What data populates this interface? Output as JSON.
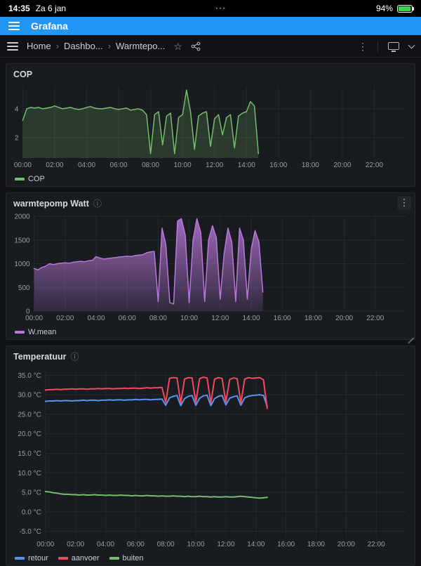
{
  "status_bar": {
    "time": "14:35",
    "date": "Za 6 jan",
    "dots": "•••",
    "battery_percent": "94%",
    "battery_level": 0.94
  },
  "app_bar": {
    "title": "Grafana"
  },
  "icons": {
    "kebab": "⋮",
    "star": "☆",
    "separator": "›",
    "info": "ⓘ"
  },
  "colors": {
    "app_bar_blue": "#2196f3",
    "battery_green": "#32d74b",
    "panel_bg": "#181b1f",
    "page_bg": "#111217"
  },
  "nav": {
    "breadcrumb": [
      {
        "label": "Home"
      },
      {
        "label": "Dashbo..."
      },
      {
        "label": "Warmtepo..."
      }
    ]
  },
  "panels": [
    {
      "id": "cop",
      "title": "COP",
      "chart_data": {
        "type": "line",
        "xlim": [
          0,
          24
        ],
        "x_ticks": [
          0,
          2,
          4,
          6,
          8,
          10,
          12,
          14,
          16,
          18,
          20,
          22
        ],
        "x_tick_labels": [
          "00:00",
          "02:00",
          "04:00",
          "06:00",
          "08:00",
          "10:00",
          "12:00",
          "14:00",
          "16:00",
          "18:00",
          "20:00",
          "22:00"
        ],
        "ylim": [
          0.6,
          5.5
        ],
        "y_ticks": [
          2,
          4
        ],
        "y_tick_labels": [
          "2",
          "4"
        ],
        "x_start": 0,
        "x_step": 0.25,
        "grid": true,
        "legend_position": "bottom-left",
        "series": [
          {
            "name": "COP",
            "color": "#73bf69",
            "fill": "solid",
            "fill_opacity": 0.2,
            "width": 1.5,
            "values": [
              3.2,
              4.0,
              4.1,
              4.05,
              4.1,
              4.0,
              4.05,
              4.1,
              4.2,
              4.1,
              4.0,
              4.05,
              4.1,
              4.0,
              3.95,
              4.0,
              4.1,
              4.15,
              4.05,
              4.0,
              4.0,
              4.05,
              4.1,
              4.0,
              3.95,
              4.0,
              4.05,
              3.9,
              3.95,
              4.0,
              3.9,
              3.6,
              0.9,
              3.6,
              3.8,
              1.5,
              3.5,
              3.7,
              0.9,
              3.4,
              3.6,
              5.3,
              3.8,
              1.2,
              3.5,
              3.7,
              3.8,
              1.4,
              3.3,
              3.6,
              2.2,
              3.4,
              3.6,
              1.3,
              3.5,
              3.7,
              3.8,
              4.5,
              4.2,
              0.9
            ]
          }
        ]
      }
    },
    {
      "id": "watt",
      "title": "warmtepomp Watt",
      "has_info": true,
      "has_menu": true,
      "chart_data": {
        "type": "area",
        "xlim": [
          0,
          24
        ],
        "x_ticks": [
          0,
          2,
          4,
          6,
          8,
          10,
          12,
          14,
          16,
          18,
          20,
          22
        ],
        "x_tick_labels": [
          "00:00",
          "02:00",
          "04:00",
          "06:00",
          "08:00",
          "10:00",
          "12:00",
          "14:00",
          "16:00",
          "18:00",
          "20:00",
          "22:00"
        ],
        "ylim": [
          0,
          2000
        ],
        "y_ticks": [
          0,
          500,
          1000,
          1500,
          2000
        ],
        "y_tick_labels": [
          "0",
          "500",
          "1000",
          "1500",
          "2000"
        ],
        "x_start": 0,
        "x_step": 0.25,
        "grid": true,
        "legend_position": "bottom-left",
        "series": [
          {
            "name": "W.mean",
            "color": "#b877d9",
            "fill": "gradient",
            "width": 1.5,
            "values": [
              900,
              870,
              920,
              950,
              1000,
              980,
              1000,
              1010,
              1020,
              1010,
              1030,
              1040,
              1050,
              1040,
              1060,
              1070,
              1150,
              1120,
              1100,
              1110,
              1120,
              1130,
              1140,
              1150,
              1160,
              1150,
              1170,
              1180,
              1190,
              1230,
              1250,
              1260,
              200,
              1750,
              1400,
              180,
              150,
              1900,
              1950,
              1600,
              180,
              1500,
              1950,
              1650,
              200,
              1500,
              1800,
              1550,
              250,
              1200,
              1750,
              1450,
              200,
              1750,
              1500,
              250,
              1300,
              1700,
              1450,
              400
            ]
          }
        ]
      }
    },
    {
      "id": "temp",
      "title": "Temperatuur",
      "has_info": true,
      "chart_data": {
        "type": "line",
        "xlim": [
          0,
          24
        ],
        "x_ticks": [
          0,
          2,
          4,
          6,
          8,
          10,
          12,
          14,
          16,
          18,
          20,
          22
        ],
        "x_tick_labels": [
          "00:00",
          "02:00",
          "04:00",
          "06:00",
          "08:00",
          "10:00",
          "12:00",
          "14:00",
          "16:00",
          "18:00",
          "20:00",
          "22:00"
        ],
        "ylim": [
          -6.5,
          36.5
        ],
        "y_ticks": [
          -5,
          0,
          5,
          10,
          15,
          20,
          25,
          30,
          35
        ],
        "y_tick_labels": [
          "-5.0 °C",
          "0.0 °C",
          "5.0 °C",
          "10.0 °C",
          "15.0 °C",
          "20.0 °C",
          "25.0 °C",
          "30.0 °C",
          "35.0 °C"
        ],
        "x_start": 0,
        "x_step": 0.25,
        "grid": true,
        "legend_position": "bottom-left",
        "series": [
          {
            "name": "retour",
            "color": "#5794f2",
            "width": 2,
            "values": [
              28.3,
              28.4,
              28.4,
              28.5,
              28.4,
              28.5,
              28.5,
              28.4,
              28.5,
              28.5,
              28.6,
              28.5,
              28.6,
              28.6,
              28.5,
              28.6,
              28.6,
              28.7,
              28.6,
              28.7,
              28.7,
              28.6,
              28.7,
              28.7,
              28.8,
              28.7,
              28.8,
              28.8,
              28.7,
              28.8,
              28.8,
              28.9,
              27.3,
              29.2,
              29.6,
              29.8,
              27.2,
              29.0,
              29.6,
              29.8,
              27.3,
              29.1,
              29.7,
              29.9,
              27.2,
              29.0,
              29.6,
              29.8,
              27.4,
              29.1,
              29.5,
              29.7,
              27.3,
              29.2,
              29.6,
              29.8,
              29.9,
              30.0,
              29.8,
              27.0
            ]
          },
          {
            "name": "aanvoer",
            "color": "#f2495c",
            "width": 2,
            "values": [
              31.2,
              31.3,
              31.3,
              31.4,
              31.3,
              31.4,
              31.4,
              31.5,
              31.4,
              31.5,
              31.5,
              31.4,
              31.5,
              31.5,
              31.6,
              31.5,
              31.6,
              31.6,
              31.5,
              31.6,
              31.6,
              31.7,
              31.6,
              31.7,
              31.7,
              31.6,
              31.7,
              31.8,
              31.7,
              31.8,
              31.8,
              31.9,
              28.0,
              34.2,
              34.4,
              34.3,
              27.8,
              34.0,
              34.4,
              34.3,
              28.0,
              34.1,
              34.5,
              34.3,
              27.9,
              34.0,
              34.4,
              34.2,
              28.1,
              33.9,
              34.3,
              34.1,
              27.9,
              34.0,
              34.4,
              34.2,
              34.3,
              34.4,
              33.8,
              26.5
            ]
          },
          {
            "name": "buiten",
            "color": "#73bf69",
            "width": 2,
            "values": [
              5.2,
              5.1,
              4.9,
              4.8,
              4.6,
              4.5,
              4.5,
              4.4,
              4.4,
              4.3,
              4.4,
              4.3,
              4.3,
              4.4,
              4.3,
              4.3,
              4.2,
              4.3,
              4.2,
              4.2,
              4.3,
              4.2,
              4.2,
              4.1,
              4.2,
              4.1,
              4.1,
              4.2,
              4.1,
              4.1,
              4.0,
              4.1,
              4.0,
              4.0,
              4.1,
              4.0,
              4.0,
              3.9,
              4.0,
              3.9,
              3.9,
              4.0,
              3.9,
              3.9,
              3.8,
              3.9,
              3.8,
              3.8,
              3.9,
              3.8,
              3.8,
              3.9,
              4.0,
              3.9,
              3.8,
              3.7,
              3.6,
              3.5,
              3.6,
              3.7
            ]
          }
        ]
      }
    }
  ]
}
